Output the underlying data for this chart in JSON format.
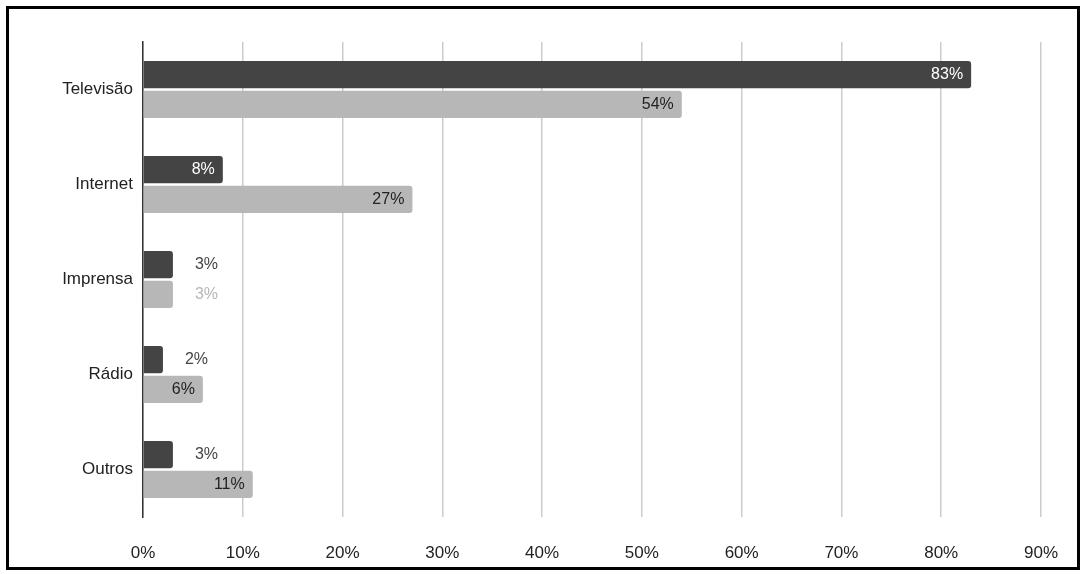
{
  "chart_data": {
    "type": "bar",
    "orientation": "horizontal",
    "categories": [
      "Televisão",
      "Internet",
      "Imprensa",
      "Rádio",
      "Outros"
    ],
    "series": [
      {
        "color": "#444444",
        "values": [
          83,
          8,
          3,
          2,
          3
        ],
        "value_labels": [
          "83%",
          "8%",
          "3%",
          "2%",
          "3%"
        ]
      },
      {
        "color": "#b7b7b7",
        "values": [
          54,
          27,
          3,
          6,
          11
        ],
        "value_labels": [
          "54%",
          "27%",
          "3%",
          "6%",
          "11%"
        ]
      }
    ],
    "xlim": [
      0,
      90
    ],
    "xticks": [
      {
        "value": 0,
        "label": "0%"
      },
      {
        "value": 10,
        "label": "10%"
      },
      {
        "value": 20,
        "label": "20%"
      },
      {
        "value": 30,
        "label": "30%"
      },
      {
        "value": 40,
        "label": "40%"
      },
      {
        "value": 50,
        "label": "50%"
      },
      {
        "value": 60,
        "label": "60%"
      },
      {
        "value": 70,
        "label": "70%"
      },
      {
        "value": 80,
        "label": "80%"
      },
      {
        "value": 90,
        "label": "90%"
      }
    ],
    "grid": "x",
    "legend": false
  }
}
